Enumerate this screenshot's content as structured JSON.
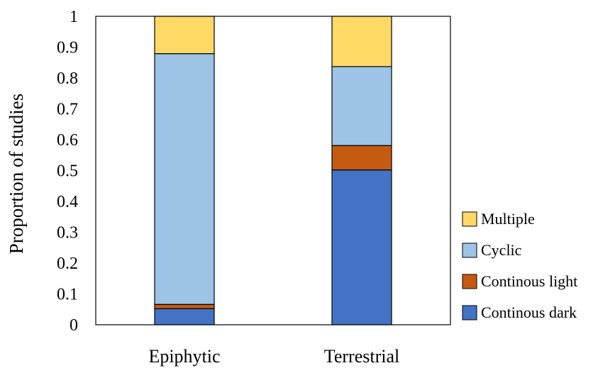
{
  "chart_data": {
    "type": "bar",
    "stacked": true,
    "categories": [
      "Epiphytic",
      "Terrestrial"
    ],
    "series": [
      {
        "name": "Continous dark",
        "color": "#4472C4",
        "values": [
          0.052,
          0.502
        ]
      },
      {
        "name": "Continous light",
        "color": "#C55A11",
        "values": [
          0.014,
          0.079
        ]
      },
      {
        "name": "Cyclic",
        "color": "#9DC3E6",
        "values": [
          0.813,
          0.256
        ]
      },
      {
        "name": "Multiple",
        "color": "#FFD966",
        "values": [
          0.121,
          0.163
        ]
      }
    ],
    "ylabel": "Proportion of studies",
    "xlabel": "",
    "ylim": [
      0,
      1
    ],
    "yticks": [
      "0",
      "0.1",
      "0.2",
      "0.3",
      "0.4",
      "0.5",
      "0.6",
      "0.7",
      "0.8",
      "0.9",
      "1"
    ],
    "grid": false,
    "legend": {
      "placement": "right",
      "entries": [
        "Multiple",
        "Cyclic",
        "Continous light",
        "Continous dark"
      ]
    }
  }
}
